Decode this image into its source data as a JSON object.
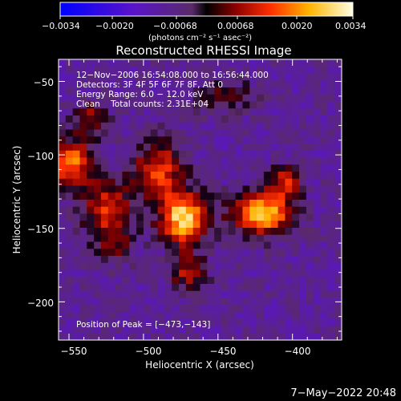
{
  "chart_data": {
    "type": "heatmap",
    "title": "Reconstructed RHESSI Image",
    "xlabel": "Heliocentric X (arcsec)",
    "ylabel": "Heliocentric Y (arcsec)",
    "xlim": [
      -557,
      -367
    ],
    "ylim": [
      -226,
      -35
    ],
    "xticks": [
      -550,
      -500,
      -450,
      -400
    ],
    "yticks": [
      -50,
      -100,
      -150,
      -200
    ],
    "xtick_labels": [
      "−550",
      "−500",
      "−450",
      "−400"
    ],
    "ytick_labels": [
      "−50",
      "−100",
      "−150",
      "−200"
    ],
    "colorbar": {
      "range": [
        -0.0034,
        0.0034
      ],
      "ticks": [
        -0.0034,
        -0.002,
        -0.00068,
        0.00068,
        0.002,
        0.0034
      ],
      "tick_labels": [
        "−0.0034",
        "−0.0020",
        "−0.00068",
        "0.00068",
        "0.0020",
        "0.0034"
      ],
      "unit_label": "(photons cm⁻² s⁻¹ asec⁻²)"
    },
    "annotations": [
      "12−Nov−2006 16:54:08.000 to 16:56:44.000",
      "Detectors: 3F 4F 5F 6F 7F 8F, Att 0",
      "Energy Range: 6.0 − 12.0 keV",
      "Clean    Total counts: 2.31E+04"
    ],
    "peak_label": "Position of Peak = [−473,−143]",
    "peak": [
      -473,
      -143
    ],
    "sources": [
      {
        "x": -473,
        "y": -143,
        "amp": 1.0,
        "sx": 11,
        "sy": 12
      },
      {
        "x": -420,
        "y": -140,
        "amp": 0.92,
        "sx": 14,
        "sy": 10
      },
      {
        "x": -549,
        "y": -105,
        "amp": 0.75,
        "sx": 10,
        "sy": 11
      },
      {
        "x": -490,
        "y": -110,
        "amp": 0.6,
        "sx": 12,
        "sy": 14
      },
      {
        "x": -525,
        "y": -135,
        "amp": 0.55,
        "sx": 12,
        "sy": 13
      },
      {
        "x": -535,
        "y": -75,
        "amp": 0.45,
        "sx": 8,
        "sy": 8
      },
      {
        "x": -405,
        "y": -118,
        "amp": 0.5,
        "sx": 8,
        "sy": 8
      },
      {
        "x": -470,
        "y": -180,
        "amp": 0.45,
        "sx": 9,
        "sy": 9
      },
      {
        "x": -445,
        "y": -60,
        "amp": 0.28,
        "sx": 14,
        "sy": 9
      },
      {
        "x": -520,
        "y": -160,
        "amp": 0.35,
        "sx": 10,
        "sy": 10
      }
    ]
  },
  "timestamp": "7−May−2022 20:48"
}
